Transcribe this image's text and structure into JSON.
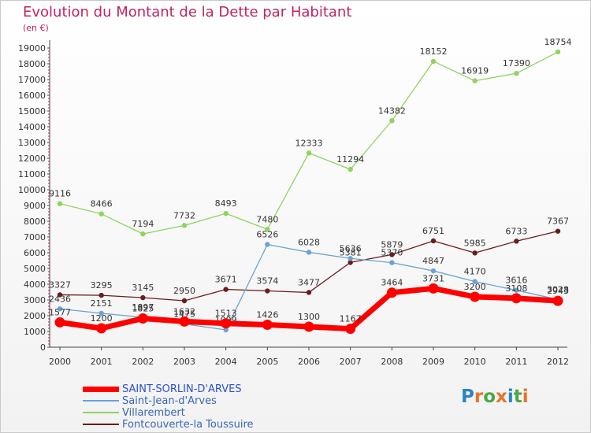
{
  "title": "Evolution du Montant de la Dette par Habitant",
  "unit": "(en €)",
  "logo": {
    "text": "Proxiti",
    "letters": [
      "P",
      "r",
      "o",
      "x",
      "i",
      "t",
      "i"
    ],
    "colors": [
      "#2a84c6",
      "#e8732a",
      "#4aa83f",
      "#e8732a",
      "#2a84c6",
      "#4aa83f",
      "#e8732a"
    ]
  },
  "chart_data": {
    "type": "line",
    "title": "Evolution du Montant de la Dette par Habitant",
    "ylabel": "(en €)",
    "xlabel": "",
    "ylim": [
      0,
      19000
    ],
    "yticks": [
      0,
      1000,
      2000,
      3000,
      4000,
      5000,
      6000,
      7000,
      8000,
      9000,
      10000,
      11000,
      12000,
      13000,
      14000,
      15000,
      16000,
      17000,
      18000,
      19000
    ],
    "categories": [
      "2000",
      "2001",
      "2002",
      "2003",
      "2004",
      "2005",
      "2006",
      "2007",
      "2008",
      "2009",
      "2010",
      "2011",
      "2012"
    ],
    "grid": false,
    "legend_position": "bottom-left",
    "series": [
      {
        "name": "Fontcouverte-la Toussuire",
        "color": "#6b1c1c",
        "values": [
          3327,
          3295,
          3145,
          2950,
          3671,
          3574,
          3477,
          5381,
          5879,
          6751,
          5985,
          6733,
          7367
        ]
      },
      {
        "name": "Villarembert",
        "color": "#8fd45f",
        "values": [
          9116,
          8466,
          7194,
          7732,
          8493,
          7480,
          12333,
          11294,
          14382,
          18152,
          16919,
          17390,
          18754
        ]
      },
      {
        "name": "Saint-Jean-d'Arves",
        "color": "#6aa3d6",
        "values": [
          2436,
          2151,
          1897,
          1475,
          1099,
          6526,
          6028,
          5636,
          5370,
          4847,
          4170,
          3616,
          3028
        ]
      },
      {
        "name": "SAINT-SORLIN-D'ARVES",
        "color": "#ff0000",
        "values": [
          1577,
          1200,
          1825,
          1632,
          1513,
          1426,
          1300,
          1167,
          3464,
          3731,
          3200,
          3108,
          2943
        ]
      }
    ]
  }
}
